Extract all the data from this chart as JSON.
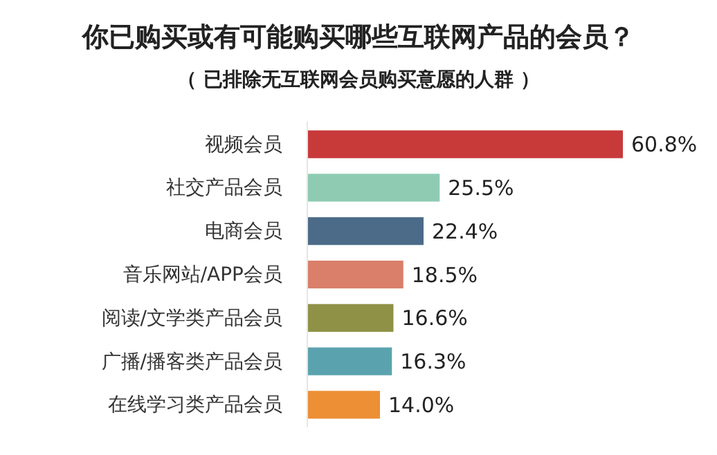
{
  "chart_data": {
    "type": "bar",
    "orientation": "horizontal",
    "title": "你已购买或有可能购买哪些互联网产品的会员？",
    "subtitle": "（ 已排除无互联网会员购买意愿的人群 ）",
    "categories": [
      "视频会员",
      "社交产品会员",
      "电商会员",
      "音乐网站/APP会员",
      "阅读/文学类产品会员",
      "广播/播客类产品会员",
      "在线学习类产品会员"
    ],
    "values": [
      60.8,
      25.5,
      22.4,
      18.5,
      16.6,
      16.3,
      14.0
    ],
    "colors": [
      "#c8393a",
      "#8fcbb3",
      "#4b6b88",
      "#d97f6a",
      "#8f9146",
      "#5aa3ae",
      "#ec8f35"
    ],
    "value_labels": [
      "60.8%",
      "25.5%",
      "22.4%",
      "18.5%",
      "16.6%",
      "16.3%",
      "14.0%"
    ],
    "tick_labels": "y"
  }
}
